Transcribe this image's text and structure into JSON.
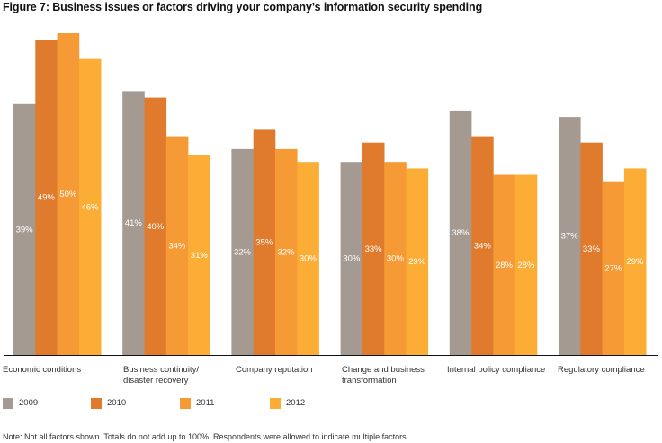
{
  "chart_data": {
    "type": "bar",
    "title": "Figure 7: Business issues or factors driving your company’s information security spending",
    "xlabel": "",
    "ylabel": "",
    "ylim": [
      0,
      50
    ],
    "grid": false,
    "legend_position": "bottom",
    "categories": [
      "Economic conditions",
      "Business continuity/ disaster recovery",
      "Company reputation",
      "Change and business transformation",
      "Internal policy compliance",
      "Regulatory compliance"
    ],
    "category_lines": [
      [
        "Economic conditions"
      ],
      [
        "Business continuity/",
        "disaster recovery"
      ],
      [
        "Company reputation"
      ],
      [
        "Change and business",
        "transformation"
      ],
      [
        "Internal policy compliance"
      ],
      [
        "Regulatory compliance"
      ]
    ],
    "series": [
      {
        "name": "2009",
        "color": "#a59a91",
        "values": [
          39,
          41,
          32,
          30,
          38,
          37
        ]
      },
      {
        "name": "2010",
        "color": "#e07b2e",
        "values": [
          49,
          40,
          35,
          33,
          34,
          33
        ]
      },
      {
        "name": "2011",
        "color": "#f59a34",
        "values": [
          50,
          34,
          32,
          30,
          28,
          27
        ]
      },
      {
        "name": "2012",
        "color": "#fbad35",
        "values": [
          46,
          31,
          30,
          29,
          28,
          29
        ]
      }
    ],
    "value_suffix": "%",
    "note": "Note: Not all factors shown. Totals do not add up to 100%. Respondents were allowed to indicate multiple factors."
  }
}
